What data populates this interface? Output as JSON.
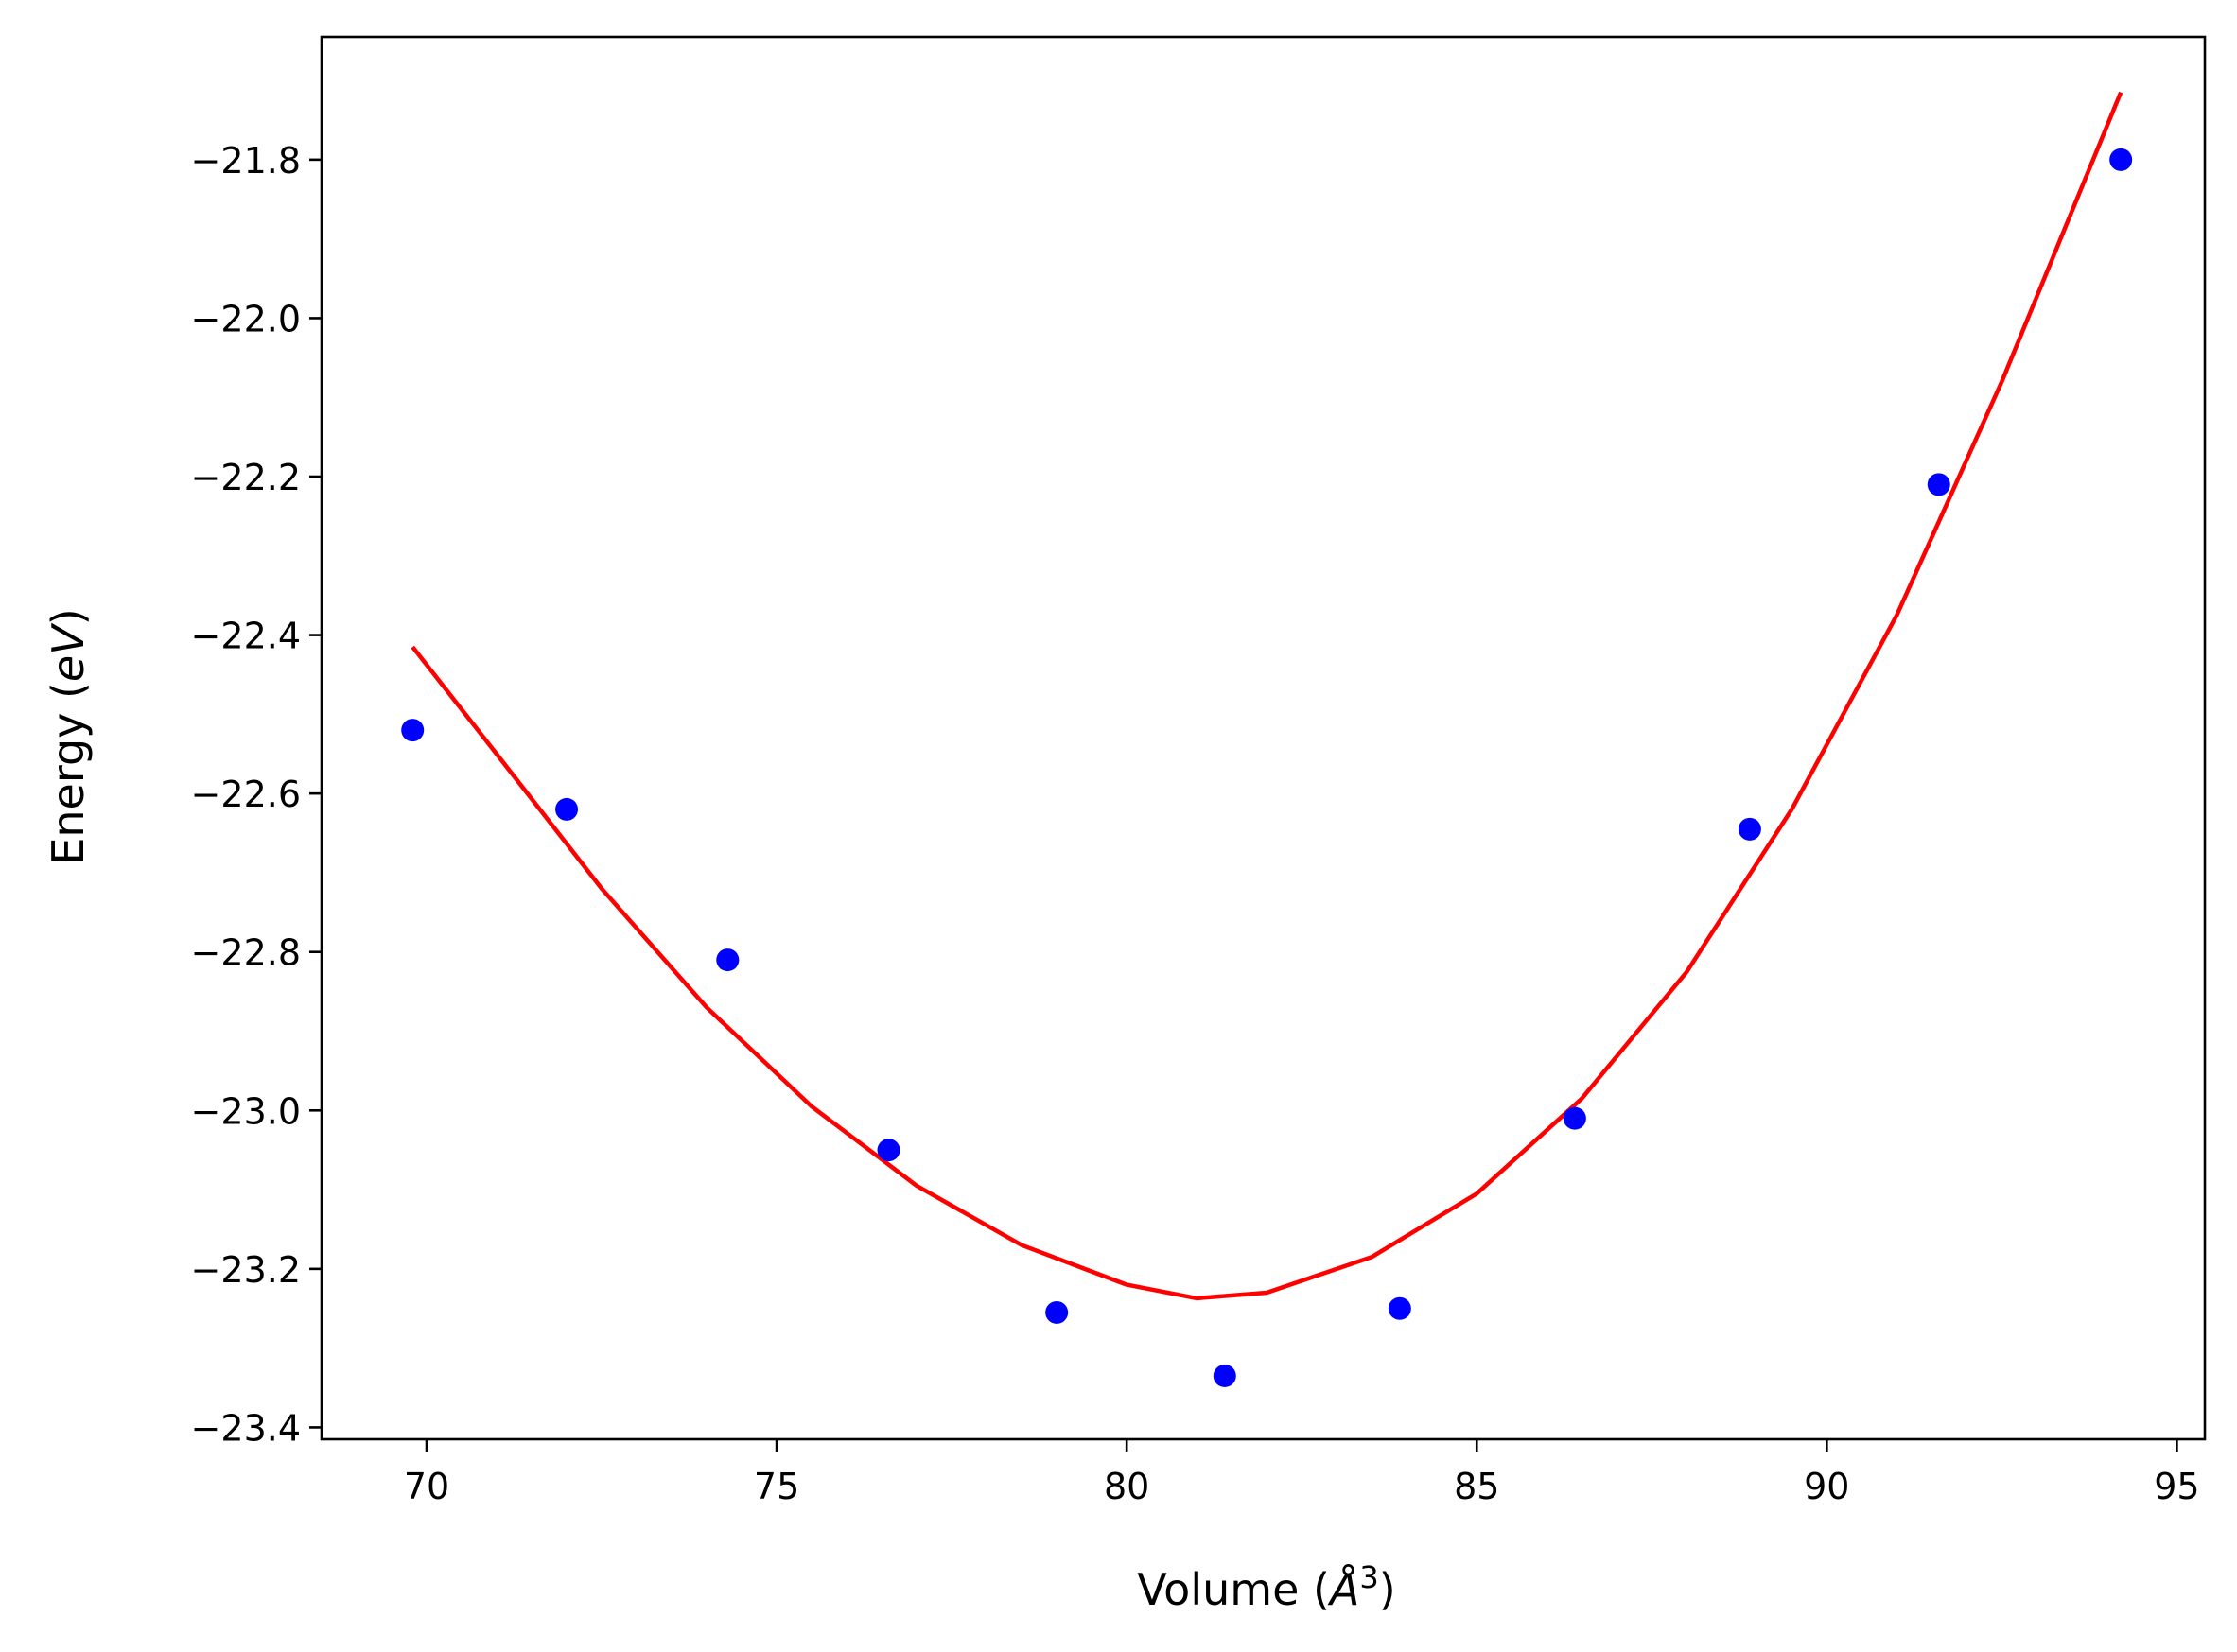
{
  "chart_data": {
    "type": "scatter",
    "title": "",
    "xlabel": "Volume ($\\AA^3$)",
    "ylabel": "Energy ($eV$)",
    "xlim": [
      68.5,
      95.4
    ],
    "ylim": [
      -23.415,
      -21.645
    ],
    "xticks": [
      70,
      75,
      80,
      85,
      90,
      95
    ],
    "xtick_labels": [
      "70",
      "75",
      "80",
      "85",
      "90",
      "95"
    ],
    "yticks": [
      -21.8,
      -22.0,
      -22.2,
      -22.4,
      -22.6,
      -22.8,
      -23.0,
      -23.2,
      -23.4
    ],
    "ytick_labels": [
      "−21.8",
      "−22.0",
      "−22.2",
      "−22.4",
      "−22.6",
      "−22.8",
      "−23.0",
      "−23.2",
      "−23.4"
    ],
    "grid": false,
    "legend": "none",
    "series": [
      {
        "kind": "scatter",
        "color": "#0000ff",
        "x": [
          69.8,
          72.0,
          74.3,
          76.6,
          79.0,
          81.4,
          83.9,
          86.4,
          88.9,
          91.6,
          94.2
        ],
        "y": [
          -22.52,
          -22.62,
          -22.81,
          -23.05,
          -23.255,
          -23.335,
          -23.25,
          -23.01,
          -22.645,
          -22.21,
          -21.8
        ]
      },
      {
        "kind": "line",
        "color": "#ff0000",
        "x": [
          69.8,
          71.0,
          72.5,
          74.0,
          75.5,
          77.0,
          78.5,
          80.0,
          81.0,
          82.0,
          83.5,
          85.0,
          86.5,
          88.0,
          89.5,
          91.0,
          92.5,
          94.2
        ],
        "y": [
          -22.415,
          -22.55,
          -22.72,
          -22.87,
          -22.995,
          -23.095,
          -23.17,
          -23.22,
          -23.237,
          -23.23,
          -23.185,
          -23.105,
          -22.985,
          -22.825,
          -22.62,
          -22.375,
          -22.08,
          -21.715
        ]
      }
    ]
  }
}
